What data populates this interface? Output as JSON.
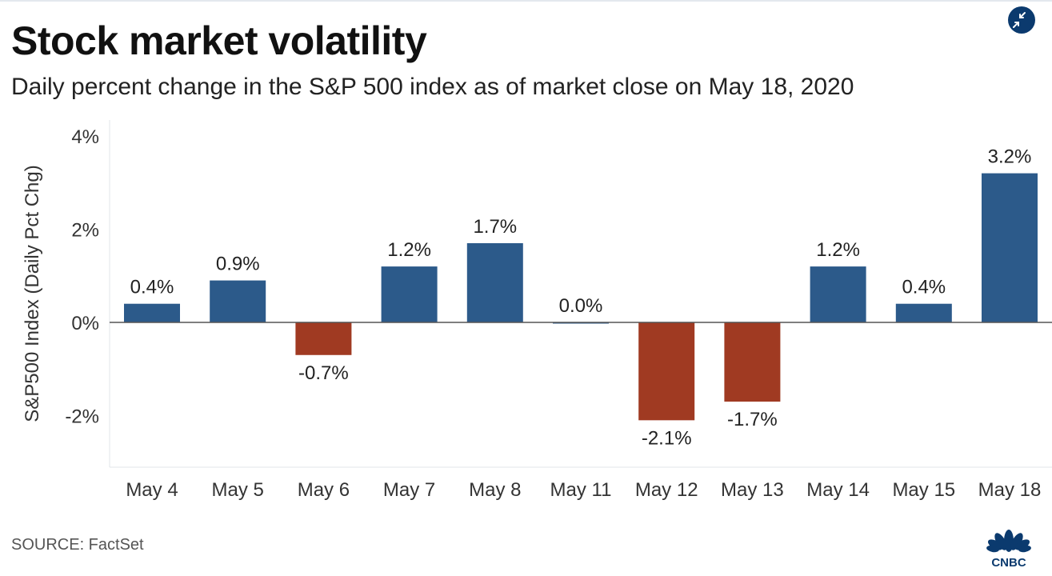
{
  "title": "Stock market volatility",
  "subtitle": "Daily percent change in the S&P 500 index as of market close on May 18, 2020",
  "source": "SOURCE: FactSet",
  "brand": "CNBC",
  "icons": {
    "collapse": "collapse-arrows-icon",
    "logo": "cnbc-peacock-logo"
  },
  "colors": {
    "positive": "#2c5a8a",
    "negative": "#a03a22",
    "accent": "#0b3a6e"
  },
  "chart_data": {
    "type": "bar",
    "ylabel": "S&P500 Index (Daily Pct Chg)",
    "categories": [
      "May 4",
      "May 5",
      "May 6",
      "May 7",
      "May 8",
      "May 11",
      "May 12",
      "May 13",
      "May 14",
      "May 15",
      "May 18"
    ],
    "values": [
      0.4,
      0.9,
      -0.7,
      1.2,
      1.7,
      0.0,
      -2.1,
      -1.7,
      1.2,
      0.4,
      3.2
    ],
    "value_labels": [
      "0.4%",
      "0.9%",
      "-0.7%",
      "1.2%",
      "1.7%",
      "0.0%",
      "-2.1%",
      "-1.7%",
      "1.2%",
      "0.4%",
      "3.2%"
    ],
    "ylim": [
      -3,
      4
    ],
    "yticks": [
      4,
      2,
      0,
      -2
    ],
    "ytick_labels": [
      "4%",
      "2%",
      "0%",
      "-2%"
    ],
    "legend": "none",
    "grid": false
  }
}
